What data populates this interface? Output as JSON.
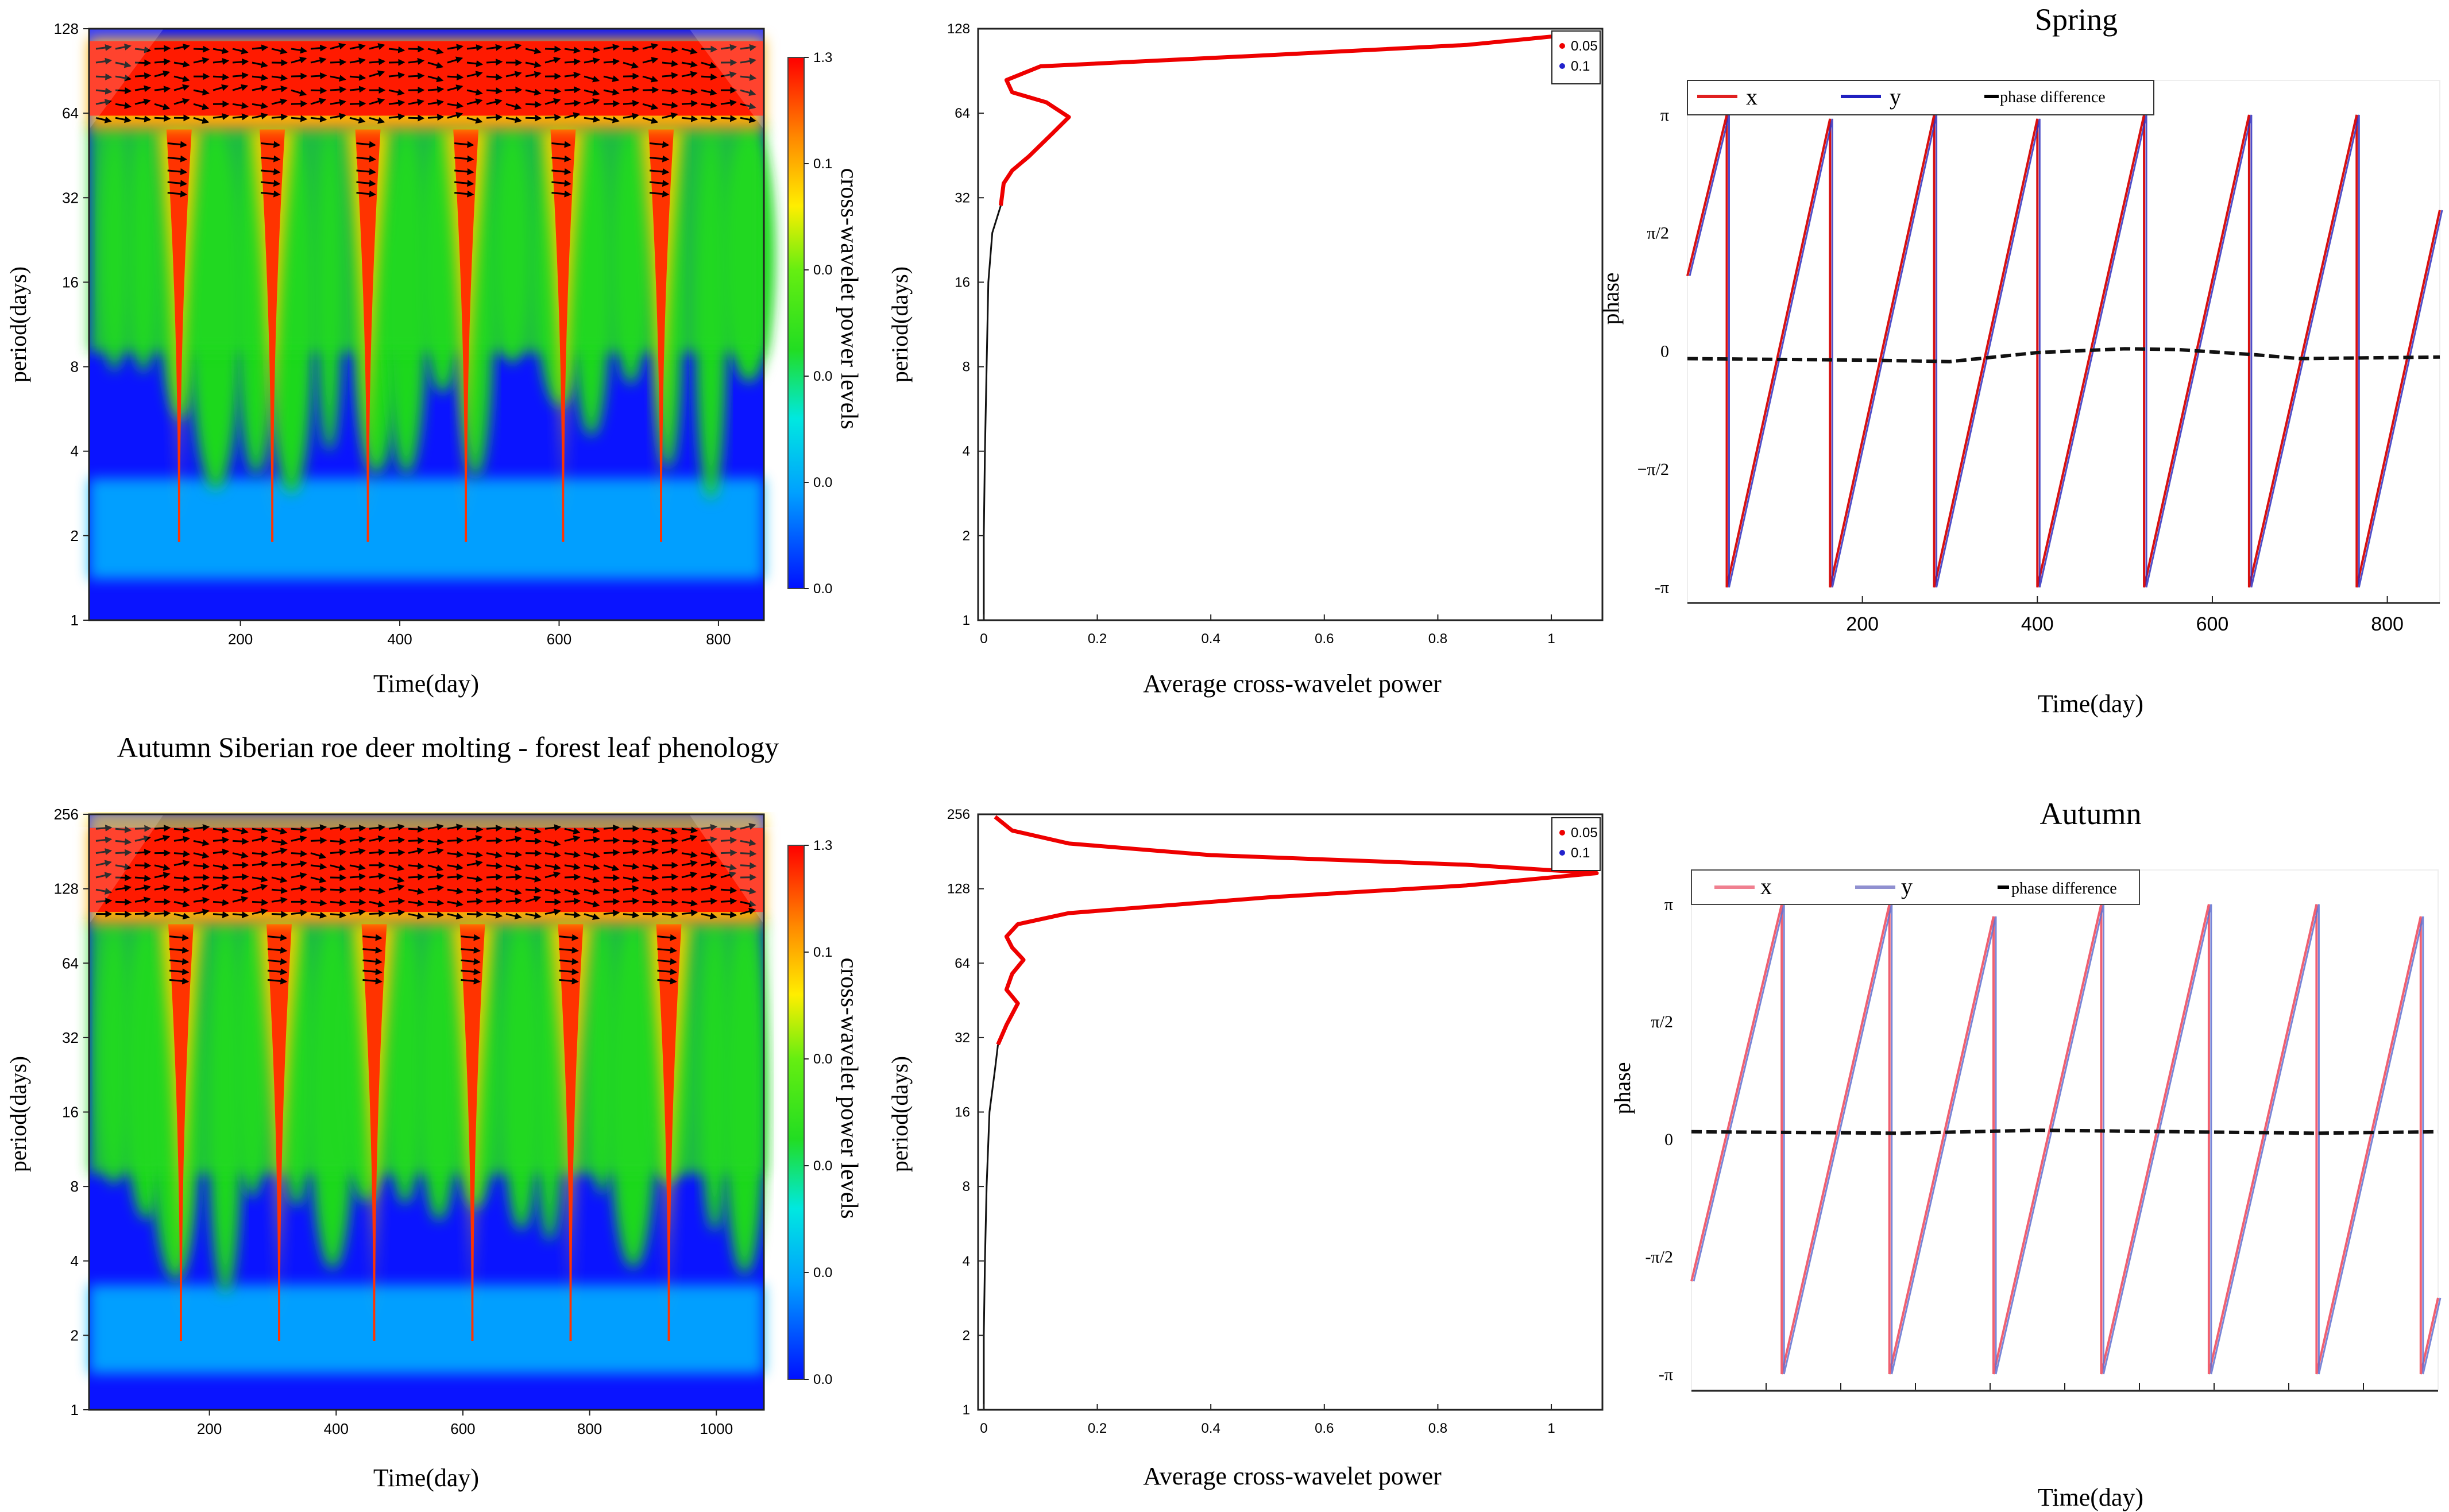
{
  "chart_data": [
    {
      "id": "spring_xwt",
      "type": "heatmap",
      "title": "",
      "xlabel": "Time(day)",
      "ylabel": "period(days)",
      "x_ticks": [
        200,
        400,
        600,
        800
      ],
      "xlim": [
        10,
        857
      ],
      "y_ticks": [
        1,
        2,
        4,
        8,
        16,
        32,
        64,
        128
      ],
      "ylim": [
        1,
        128
      ],
      "peak_days": [
        123,
        240,
        360,
        483,
        605,
        728
      ],
      "colorbar": {
        "label": "cross-wavelet power levels",
        "tick_labels": [
          "1.3",
          "0.1",
          "0.0",
          "0.0",
          "0.0",
          "0.0"
        ]
      },
      "colors": {
        "low": "#0a10ff",
        "mid": "#1fe01f",
        "high": "#ff1a00"
      }
    },
    {
      "id": "spring_avg",
      "type": "line",
      "xlabel": "Average cross-wavelet power",
      "ylabel": "period(days)",
      "x_ticks": [
        "0",
        "0.2",
        "0.4",
        "0.6",
        "0.8",
        "1"
      ],
      "xlim": [
        -0.01,
        1.09
      ],
      "y_ticks": [
        "1",
        "2",
        "4",
        "8",
        "16",
        "32",
        "64",
        "128"
      ],
      "ylim": [
        1,
        128
      ],
      "legend": [
        "0.05",
        "0.1"
      ],
      "series": [
        {
          "name": "black",
          "points": [
            [
              0,
              1
            ],
            [
              0,
              2
            ],
            [
              0.002,
              4
            ],
            [
              0.005,
              8
            ],
            [
              0.008,
              16
            ],
            [
              0.015,
              24
            ],
            [
              0.03,
              30
            ]
          ]
        },
        {
          "name": "red",
          "points": [
            [
              0.03,
              30
            ],
            [
              0.035,
              36
            ],
            [
              0.05,
              40
            ],
            [
              0.08,
              45
            ],
            [
              0.12,
              54
            ],
            [
              0.15,
              62
            ],
            [
              0.11,
              70
            ],
            [
              0.05,
              76
            ],
            [
              0.04,
              84
            ],
            [
              0.1,
              94
            ],
            [
              0.5,
              103
            ],
            [
              0.85,
              112
            ],
            [
              1.0,
              120
            ]
          ]
        }
      ]
    },
    {
      "id": "spring_phase",
      "type": "line",
      "title": "Spring",
      "xlabel": "Time(day)",
      "ylabel": "phase",
      "x_ticks": [
        "200",
        "400",
        "600",
        "800"
      ],
      "xlim": [
        0,
        860
      ],
      "y_ticks": [
        "π",
        "π/2",
        "0",
        "−π/2",
        "-π"
      ],
      "ylim": [
        -3.35,
        3.6
      ],
      "legend": [
        "x",
        "y",
        "phase difference"
      ],
      "wraps": [
        45,
        163,
        282,
        400,
        522,
        642,
        765
      ],
      "period": 119,
      "start_phase": 1.0,
      "phase_difference": [
        [
          0,
          -0.1
        ],
        [
          200,
          -0.12
        ],
        [
          300,
          -0.14
        ],
        [
          400,
          -0.02
        ],
        [
          500,
          0.03
        ],
        [
          560,
          0.02
        ],
        [
          650,
          -0.05
        ],
        [
          700,
          -0.1
        ],
        [
          860,
          -0.08
        ]
      ]
    },
    {
      "id": "autumn_xwt",
      "type": "heatmap",
      "title": "Autumn Siberian roe deer molting - forest leaf phenology",
      "xlabel": "Time(day)",
      "ylabel": "period(days)",
      "x_ticks": [
        200,
        400,
        600,
        800,
        1000
      ],
      "xlim": [
        10,
        1075
      ],
      "y_ticks": [
        1,
        2,
        4,
        8,
        16,
        32,
        64,
        128,
        256
      ],
      "ylim": [
        1,
        256
      ],
      "peak_days": [
        155,
        310,
        460,
        615,
        770,
        925
      ],
      "colorbar": {
        "label": "cross-wavelet power levels",
        "tick_labels": [
          "1.3",
          "0.1",
          "0.0",
          "0.0",
          "0.0",
          "0.0"
        ]
      },
      "colors": {
        "low": "#0a10ff",
        "mid": "#1fe01f",
        "high": "#ff1a00"
      }
    },
    {
      "id": "autumn_avg",
      "type": "line",
      "xlabel": "Average cross-wavelet power",
      "ylabel": "period(days)",
      "x_ticks": [
        "0",
        "0.2",
        "0.4",
        "0.6",
        "0.8",
        "1"
      ],
      "xlim": [
        -0.01,
        1.09
      ],
      "y_ticks": [
        "1",
        "2",
        "4",
        "8",
        "16",
        "32",
        "64",
        "128",
        "256"
      ],
      "ylim": [
        1,
        256
      ],
      "legend": [
        "0.05",
        "0.1"
      ],
      "series": [
        {
          "name": "black",
          "points": [
            [
              0,
              1
            ],
            [
              0,
              2
            ],
            [
              0.002,
              4
            ],
            [
              0.005,
              8
            ],
            [
              0.01,
              16
            ],
            [
              0.02,
              24
            ],
            [
              0.025,
              30
            ]
          ]
        },
        {
          "name": "red",
          "points": [
            [
              0.025,
              30
            ],
            [
              0.04,
              36
            ],
            [
              0.06,
              44
            ],
            [
              0.04,
              50
            ],
            [
              0.05,
              58
            ],
            [
              0.07,
              66
            ],
            [
              0.05,
              74
            ],
            [
              0.04,
              82
            ],
            [
              0.06,
              92
            ],
            [
              0.15,
              102
            ],
            [
              0.5,
              118
            ],
            [
              0.85,
              132
            ],
            [
              1.08,
              148
            ],
            [
              0.85,
              160
            ],
            [
              0.4,
              175
            ],
            [
              0.15,
              195
            ],
            [
              0.05,
              220
            ],
            [
              0.02,
              250
            ]
          ]
        }
      ]
    },
    {
      "id": "autumn_phase",
      "type": "line",
      "title": "Autumn",
      "xlabel": "Time(day)",
      "ylabel": "phase",
      "x_ticks": [],
      "xlim": [
        0,
        1075
      ],
      "y_ticks": [
        "π",
        "π/2",
        "0",
        "-π/2",
        "-π"
      ],
      "ylim": [
        -3.35,
        3.6
      ],
      "legend": [
        "x",
        "y",
        "phase difference"
      ],
      "wraps": [
        130,
        285,
        435,
        590,
        745,
        900,
        1050
      ],
      "period": 154,
      "start_phase": -1.9,
      "phase_difference": [
        [
          0,
          0.1
        ],
        [
          300,
          0.08
        ],
        [
          500,
          0.12
        ],
        [
          700,
          0.1
        ],
        [
          900,
          0.08
        ],
        [
          1075,
          0.1
        ]
      ]
    }
  ]
}
